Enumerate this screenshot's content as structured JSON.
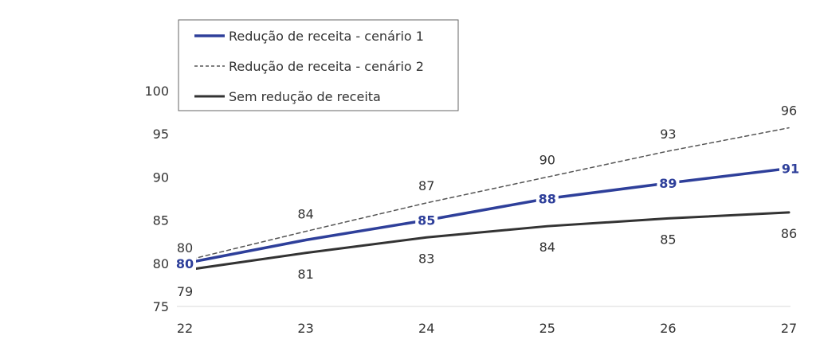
{
  "chart_data": {
    "type": "line",
    "x": [
      "22",
      "23",
      "24",
      "25",
      "26",
      "27"
    ],
    "ylim": [
      75,
      100
    ],
    "yticks": [
      "75",
      "80",
      "85",
      "90",
      "95",
      "100"
    ],
    "grid": false,
    "legend_position": "top-left",
    "series": [
      {
        "name": "Redução de receita - cenário 1",
        "values": [
          80,
          82.7,
          85,
          87.5,
          89.3,
          91
        ],
        "labels": [
          "80",
          "",
          "85",
          "88",
          "89",
          "91"
        ],
        "color": "#2e3f9a",
        "style": "solid-bold"
      },
      {
        "name": "Redução de receita - cenário 2",
        "values": [
          80.3,
          83.7,
          87,
          90,
          93,
          95.7
        ],
        "labels": [
          "80",
          "84",
          "87",
          "90",
          "93",
          "96"
        ],
        "color": "#555555",
        "style": "dashed"
      },
      {
        "name": "Sem redução de receita",
        "values": [
          79.2,
          81.2,
          83,
          84.3,
          85.2,
          85.9
        ],
        "labels": [
          "79",
          "81",
          "83",
          "84",
          "85",
          "86"
        ],
        "color": "#333333",
        "style": "solid"
      }
    ]
  }
}
